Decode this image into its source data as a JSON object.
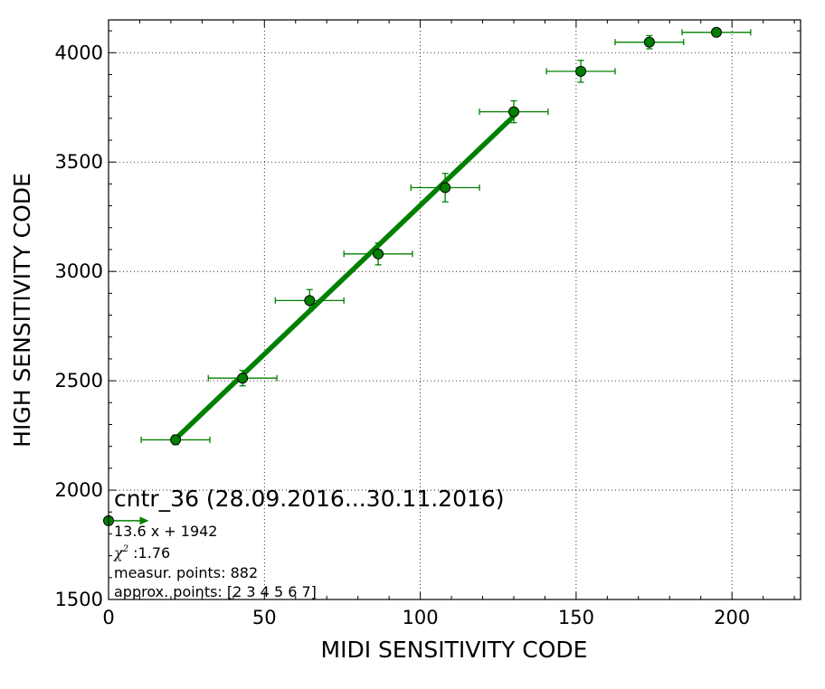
{
  "chart_data": {
    "type": "scatter",
    "xlabel": "MIDI SENSITIVITY CODE",
    "ylabel": "HIGH SENSITIVITY CODE",
    "xlim": [
      0,
      222
    ],
    "ylim": [
      1500,
      4150
    ],
    "xticks": [
      0,
      50,
      100,
      150,
      200
    ],
    "yticks": [
      1500,
      2000,
      2500,
      3000,
      3500,
      4000
    ],
    "grid": true,
    "points": [
      {
        "x": 21.5,
        "y": 2230,
        "xerr": 11,
        "yerr": 22
      },
      {
        "x": 43.0,
        "y": 2512,
        "xerr": 11,
        "yerr": 35
      },
      {
        "x": 64.5,
        "y": 2867,
        "xerr": 11,
        "yerr": 50
      },
      {
        "x": 86.5,
        "y": 3080,
        "xerr": 11,
        "yerr": 50
      },
      {
        "x": 108.0,
        "y": 3383,
        "xerr": 11,
        "yerr": 65
      },
      {
        "x": 130.0,
        "y": 3730,
        "xerr": 11,
        "yerr": 50
      },
      {
        "x": 151.5,
        "y": 3915,
        "xerr": 11,
        "yerr": 50
      },
      {
        "x": 173.5,
        "y": 4048,
        "xerr": 11,
        "yerr": 30
      },
      {
        "x": 195.0,
        "y": 4093,
        "xerr": 11,
        "yerr": 0
      }
    ],
    "fit": {
      "slope": 13.6,
      "intercept": 1942,
      "x_from": 21.5,
      "x_to": 130
    },
    "zero_point": {
      "x": 0,
      "y": 1860,
      "arrow_to_x": 10
    },
    "annotation": {
      "title": "cntr_36 (28.09.2016...30.11.2016)",
      "equation": "13.6 x + 1942",
      "chi_symbol": "χ",
      "chi_exp": "2",
      "chi_value": " :1.76",
      "measur": "measur. points: 882",
      "approx": "approx. points: [2 3 4 5 6 7]"
    },
    "colors": {
      "marker": "#008000",
      "fit": "#008000",
      "errorbar": "#008000"
    }
  }
}
